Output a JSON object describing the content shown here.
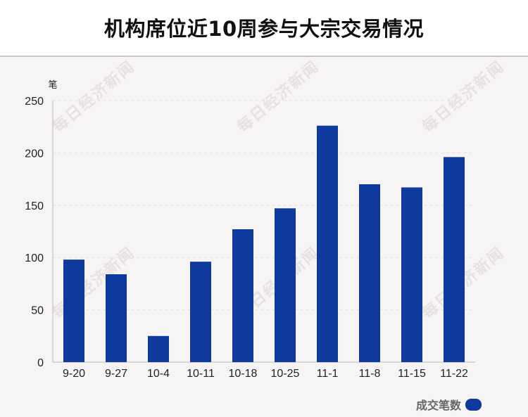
{
  "title": "机构席位近10周参与大宗交易情况",
  "watermark": "每日经济新闻",
  "legend": {
    "label": "成交笔数",
    "color": "#0e3a9e"
  },
  "chart_data": {
    "type": "bar",
    "categories": [
      "9-20",
      "9-27",
      "10-4",
      "10-11",
      "10-18",
      "10-25",
      "11-1",
      "11-8",
      "11-15",
      "11-22"
    ],
    "series": [
      {
        "name": "成交笔数",
        "values": [
          98,
          84,
          25,
          96,
          127,
          147,
          226,
          170,
          167,
          196
        ]
      }
    ],
    "ylabel": "笔",
    "ylim": [
      0,
      250
    ],
    "yticks": [
      0,
      50,
      100,
      150,
      200,
      250
    ],
    "grid": true,
    "legend_position": "bottom-right",
    "bar_color": "#0e3a9e"
  }
}
